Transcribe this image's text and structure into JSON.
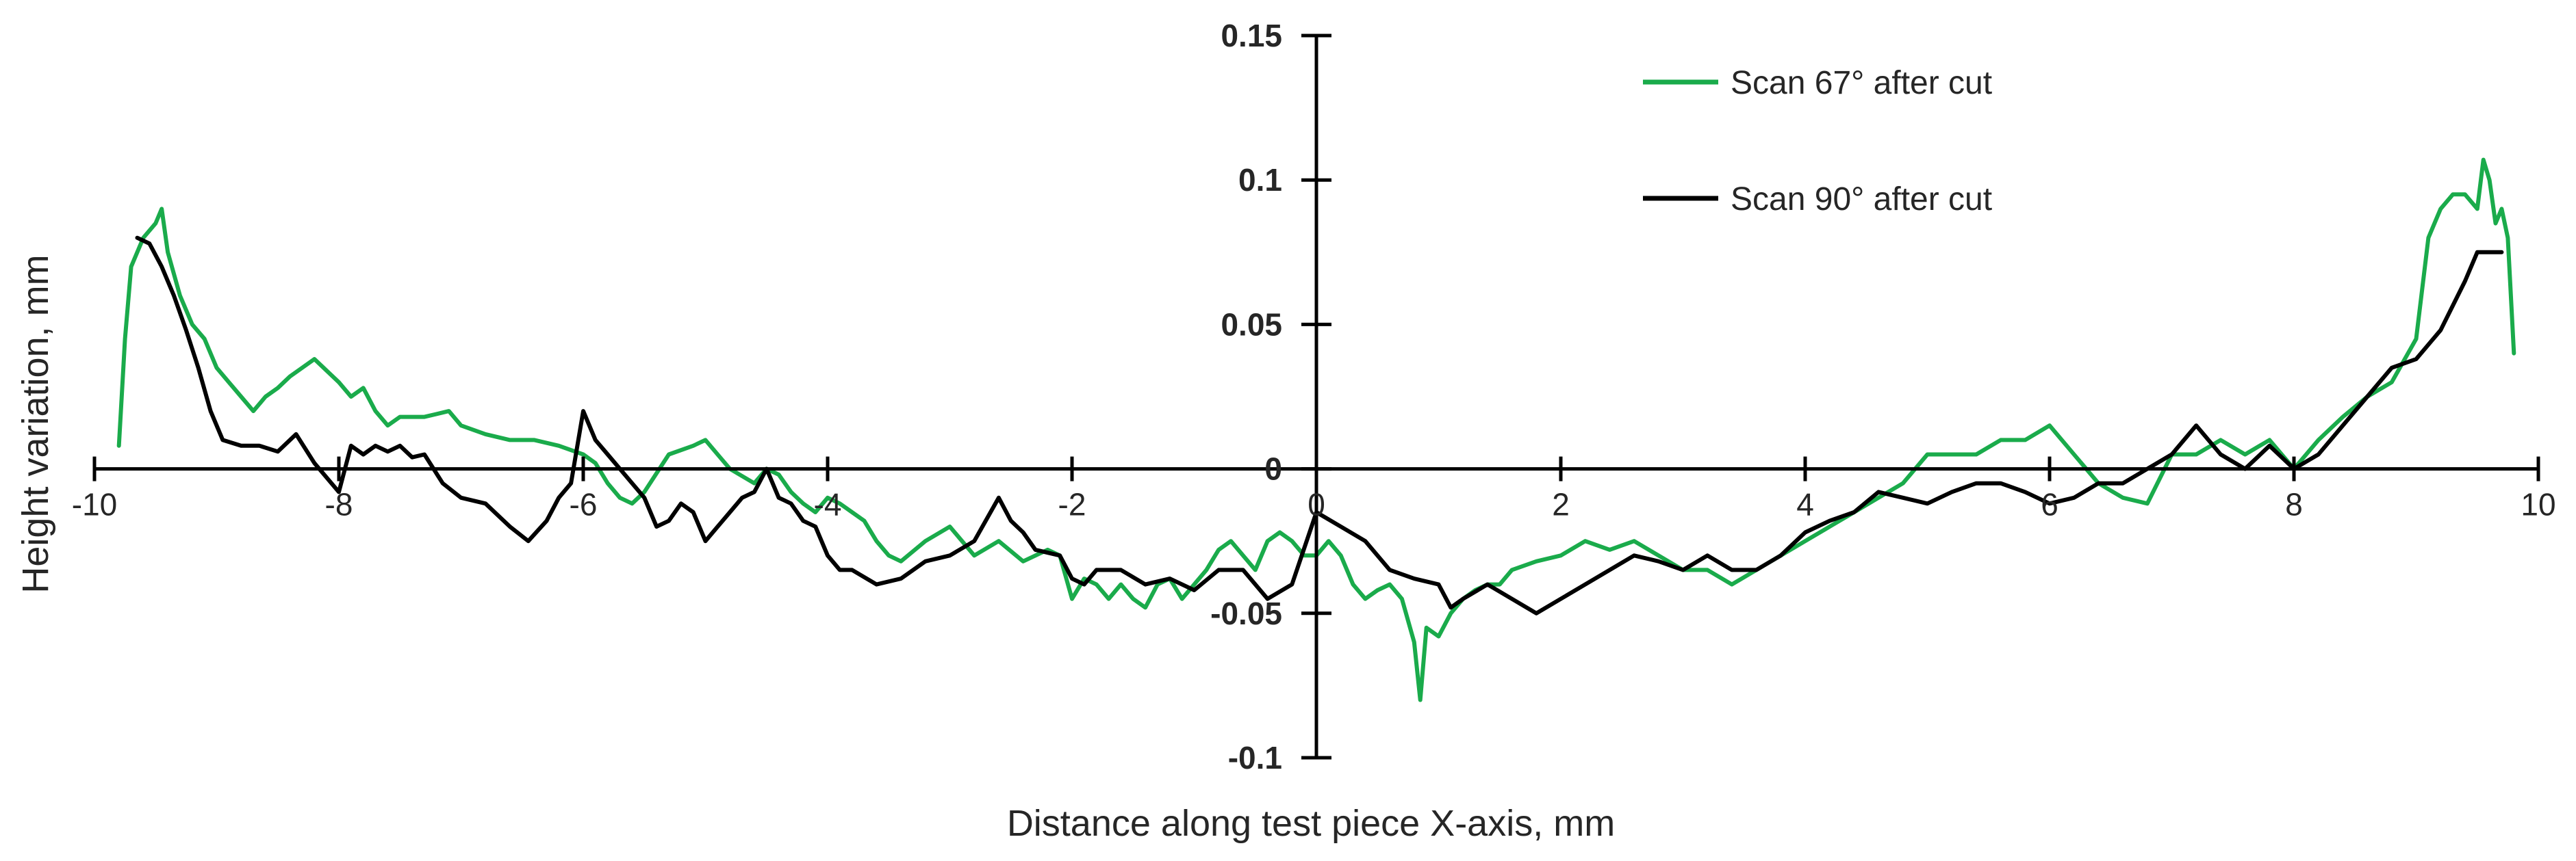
{
  "chart_data": {
    "type": "line",
    "title": "",
    "xlabel": "Distance along test piece X-axis, mm",
    "ylabel": "Height variation, mm",
    "xlim": [
      -10,
      10
    ],
    "ylim": [
      -0.1,
      0.15
    ],
    "xticks": [
      "-10",
      "-8",
      "-6",
      "-4",
      "-2",
      "0",
      "2",
      "4",
      "6",
      "8",
      "10"
    ],
    "yticks": [
      "-0.1",
      "-0.05",
      "0",
      "0.05",
      "0.1",
      "0.15"
    ],
    "grid": false,
    "legend": "top-right",
    "series": [
      {
        "name": "Scan 67° after cut",
        "color": "#1aab4b",
        "x": [
          -9.8,
          -9.75,
          -9.7,
          -9.6,
          -9.5,
          -9.45,
          -9.4,
          -9.3,
          -9.2,
          -9.1,
          -9.0,
          -8.9,
          -8.8,
          -8.7,
          -8.6,
          -8.5,
          -8.4,
          -8.3,
          -8.2,
          -8.0,
          -7.9,
          -7.8,
          -7.7,
          -7.6,
          -7.5,
          -7.3,
          -7.1,
          -7.0,
          -6.8,
          -6.6,
          -6.4,
          -6.2,
          -6.0,
          -5.9,
          -5.8,
          -5.7,
          -5.6,
          -5.5,
          -5.3,
          -5.1,
          -5.0,
          -4.9,
          -4.8,
          -4.6,
          -4.5,
          -4.4,
          -4.3,
          -4.2,
          -4.1,
          -4.0,
          -3.9,
          -3.8,
          -3.7,
          -3.6,
          -3.5,
          -3.4,
          -3.2,
          -3.0,
          -2.8,
          -2.6,
          -2.4,
          -2.2,
          -2.1,
          -2.0,
          -1.9,
          -1.8,
          -1.7,
          -1.6,
          -1.5,
          -1.4,
          -1.3,
          -1.2,
          -1.1,
          -1.0,
          -0.9,
          -0.8,
          -0.7,
          -0.6,
          -0.5,
          -0.4,
          -0.3,
          -0.2,
          -0.1,
          0.0,
          0.1,
          0.2,
          0.3,
          0.4,
          0.5,
          0.6,
          0.7,
          0.8,
          0.85,
          0.9,
          1.0,
          1.1,
          1.2,
          1.3,
          1.4,
          1.5,
          1.6,
          1.8,
          2.0,
          2.2,
          2.4,
          2.6,
          2.8,
          3.0,
          3.2,
          3.4,
          3.6,
          3.8,
          4.0,
          4.2,
          4.4,
          4.6,
          4.8,
          5.0,
          5.2,
          5.4,
          5.6,
          5.8,
          6.0,
          6.2,
          6.4,
          6.6,
          6.8,
          7.0,
          7.2,
          7.4,
          7.6,
          7.8,
          8.0,
          8.2,
          8.4,
          8.6,
          8.8,
          9.0,
          9.1,
          9.2,
          9.3,
          9.4,
          9.5,
          9.55,
          9.6,
          9.65,
          9.7,
          9.75,
          9.8
        ],
        "y": [
          0.008,
          0.045,
          0.07,
          0.08,
          0.085,
          0.09,
          0.075,
          0.06,
          0.05,
          0.045,
          0.035,
          0.03,
          0.025,
          0.02,
          0.025,
          0.028,
          0.032,
          0.035,
          0.038,
          0.03,
          0.025,
          0.028,
          0.02,
          0.015,
          0.018,
          0.018,
          0.02,
          0.015,
          0.012,
          0.01,
          0.01,
          0.008,
          0.005,
          0.002,
          -0.005,
          -0.01,
          -0.012,
          -0.008,
          0.005,
          0.008,
          0.01,
          0.005,
          0.0,
          -0.005,
          0.0,
          -0.002,
          -0.008,
          -0.012,
          -0.015,
          -0.01,
          -0.012,
          -0.015,
          -0.018,
          -0.025,
          -0.03,
          -0.032,
          -0.025,
          -0.02,
          -0.03,
          -0.025,
          -0.032,
          -0.028,
          -0.03,
          -0.045,
          -0.038,
          -0.04,
          -0.045,
          -0.04,
          -0.045,
          -0.048,
          -0.04,
          -0.038,
          -0.045,
          -0.04,
          -0.035,
          -0.028,
          -0.025,
          -0.03,
          -0.035,
          -0.025,
          -0.022,
          -0.025,
          -0.03,
          -0.03,
          -0.025,
          -0.03,
          -0.04,
          -0.045,
          -0.042,
          -0.04,
          -0.045,
          -0.06,
          -0.08,
          -0.055,
          -0.058,
          -0.05,
          -0.045,
          -0.042,
          -0.04,
          -0.04,
          -0.035,
          -0.032,
          -0.03,
          -0.025,
          -0.028,
          -0.025,
          -0.03,
          -0.035,
          -0.035,
          -0.04,
          -0.035,
          -0.03,
          -0.025,
          -0.02,
          -0.015,
          -0.01,
          -0.005,
          0.005,
          0.005,
          0.005,
          0.01,
          0.01,
          0.015,
          0.005,
          -0.005,
          -0.01,
          -0.012,
          0.005,
          0.005,
          0.01,
          0.005,
          0.01,
          0.0,
          0.01,
          0.018,
          0.025,
          0.03,
          0.045,
          0.08,
          0.09,
          0.095,
          0.095,
          0.09,
          0.107,
          0.1,
          0.085,
          0.09,
          0.08,
          0.04
        ]
      },
      {
        "name": "Scan 90° after cut",
        "color": "#000000",
        "x": [
          -9.65,
          -9.55,
          -9.45,
          -9.35,
          -9.25,
          -9.15,
          -9.05,
          -8.95,
          -8.8,
          -8.65,
          -8.5,
          -8.35,
          -8.2,
          -8.0,
          -7.9,
          -7.8,
          -7.7,
          -7.6,
          -7.5,
          -7.4,
          -7.3,
          -7.15,
          -7.0,
          -6.8,
          -6.6,
          -6.45,
          -6.3,
          -6.2,
          -6.1,
          -6.0,
          -5.9,
          -5.8,
          -5.7,
          -5.6,
          -5.5,
          -5.4,
          -5.3,
          -5.2,
          -5.1,
          -5.0,
          -4.9,
          -4.8,
          -4.7,
          -4.6,
          -4.5,
          -4.4,
          -4.3,
          -4.2,
          -4.1,
          -4.0,
          -3.9,
          -3.8,
          -3.6,
          -3.4,
          -3.2,
          -3.0,
          -2.8,
          -2.6,
          -2.5,
          -2.4,
          -2.3,
          -2.1,
          -2.0,
          -1.9,
          -1.8,
          -1.6,
          -1.4,
          -1.2,
          -1.0,
          -0.8,
          -0.6,
          -0.4,
          -0.2,
          0.0,
          0.2,
          0.4,
          0.6,
          0.8,
          1.0,
          1.1,
          1.2,
          1.4,
          1.6,
          1.8,
          2.0,
          2.2,
          2.4,
          2.6,
          2.8,
          3.0,
          3.2,
          3.4,
          3.6,
          3.8,
          4.0,
          4.2,
          4.4,
          4.6,
          4.8,
          5.0,
          5.2,
          5.4,
          5.6,
          5.8,
          6.0,
          6.2,
          6.4,
          6.6,
          6.8,
          7.0,
          7.2,
          7.4,
          7.6,
          7.8,
          8.0,
          8.2,
          8.4,
          8.6,
          8.8,
          9.0,
          9.2,
          9.4,
          9.5,
          9.6,
          9.7
        ],
        "y": [
          0.08,
          0.078,
          0.07,
          0.06,
          0.048,
          0.035,
          0.02,
          0.01,
          0.008,
          0.008,
          0.006,
          0.012,
          0.002,
          -0.008,
          0.008,
          0.005,
          0.008,
          0.006,
          0.008,
          0.004,
          0.005,
          -0.005,
          -0.01,
          -0.012,
          -0.02,
          -0.025,
          -0.018,
          -0.01,
          -0.005,
          0.02,
          0.01,
          0.005,
          0.0,
          -0.005,
          -0.01,
          -0.02,
          -0.018,
          -0.012,
          -0.015,
          -0.025,
          -0.02,
          -0.015,
          -0.01,
          -0.008,
          0.0,
          -0.01,
          -0.012,
          -0.018,
          -0.02,
          -0.03,
          -0.035,
          -0.035,
          -0.04,
          -0.038,
          -0.032,
          -0.03,
          -0.025,
          -0.01,
          -0.018,
          -0.022,
          -0.028,
          -0.03,
          -0.038,
          -0.04,
          -0.035,
          -0.035,
          -0.04,
          -0.038,
          -0.042,
          -0.035,
          -0.035,
          -0.045,
          -0.04,
          -0.015,
          -0.02,
          -0.025,
          -0.035,
          -0.038,
          -0.04,
          -0.048,
          -0.045,
          -0.04,
          -0.045,
          -0.05,
          -0.045,
          -0.04,
          -0.035,
          -0.03,
          -0.032,
          -0.035,
          -0.03,
          -0.035,
          -0.035,
          -0.03,
          -0.022,
          -0.018,
          -0.015,
          -0.008,
          -0.01,
          -0.012,
          -0.008,
          -0.005,
          -0.005,
          -0.008,
          -0.012,
          -0.01,
          -0.005,
          -0.005,
          0.0,
          0.005,
          0.015,
          0.005,
          0.0,
          0.008,
          0.0,
          0.005,
          0.015,
          0.025,
          0.035,
          0.038,
          0.048,
          0.065,
          0.075,
          0.075,
          0.075
        ]
      }
    ]
  }
}
